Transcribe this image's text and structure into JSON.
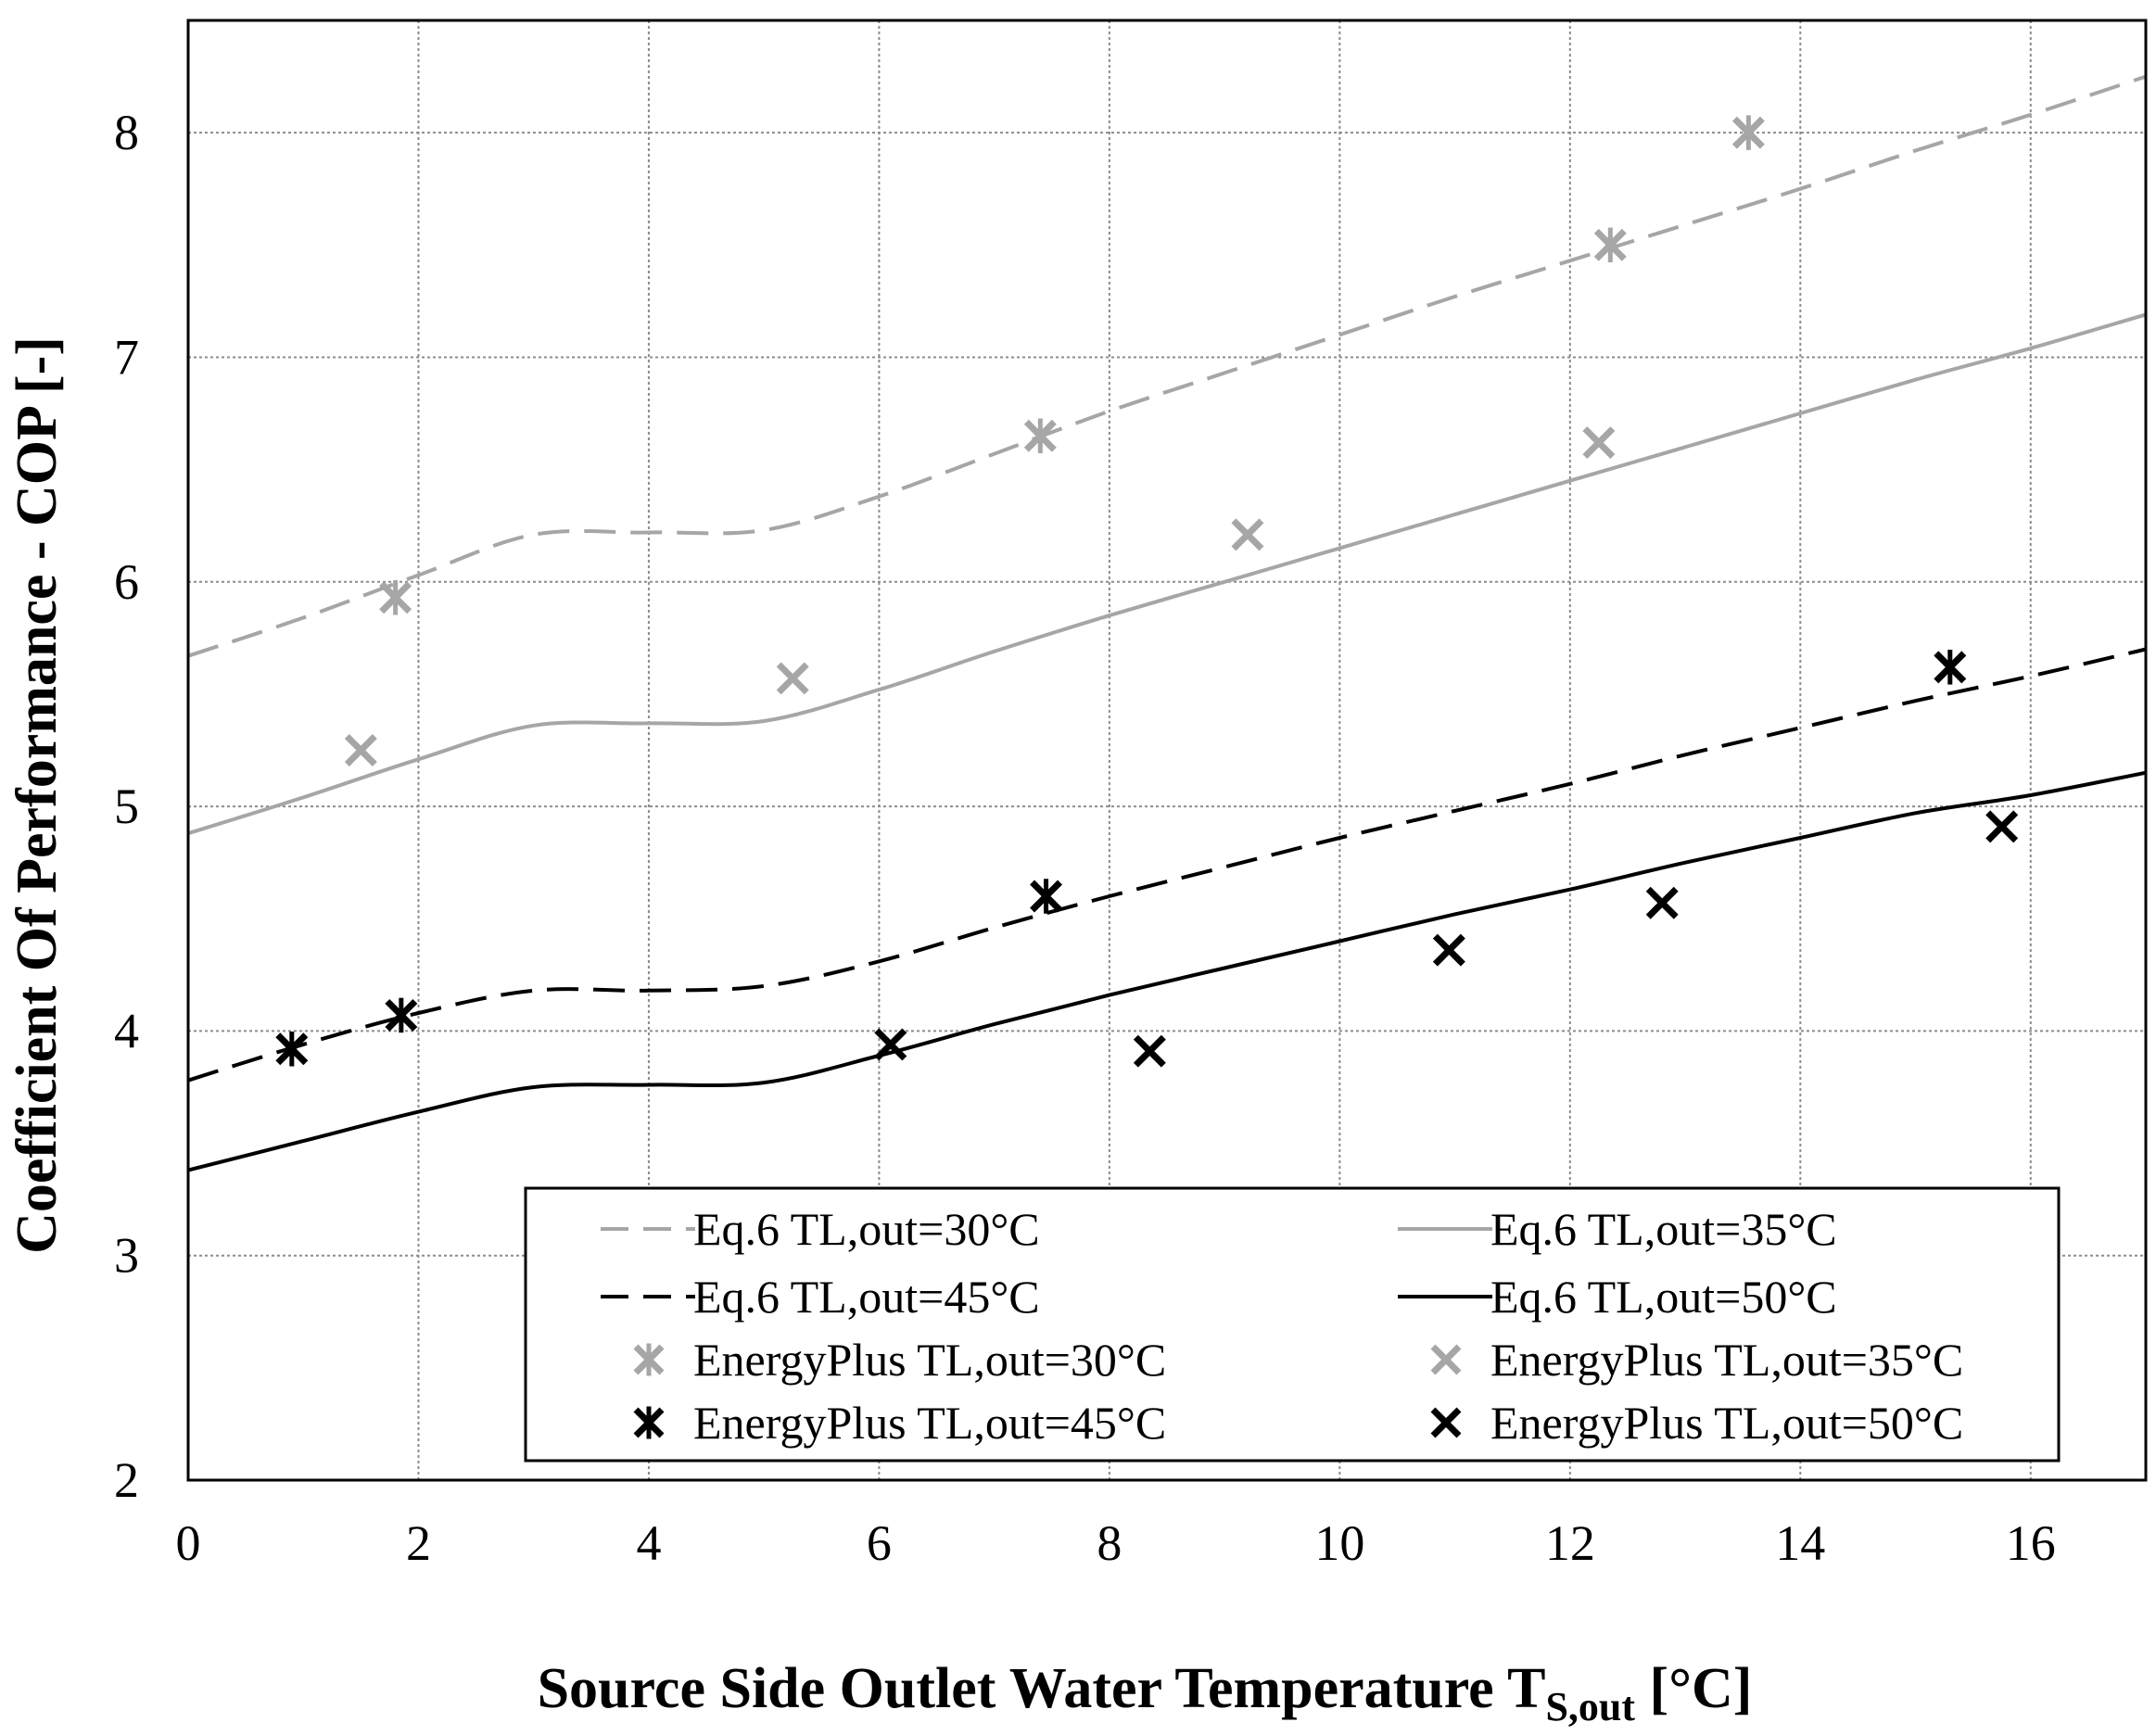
{
  "chart_data": {
    "type": "line",
    "title": "",
    "xlabel_main": "Source Side Outlet Water Temperature T",
    "xlabel_sub": "S,out",
    "xlabel_unit": " [°C]",
    "ylabel": "Coefficient Of Performance - COP [-]",
    "xlim": [
      0,
      17
    ],
    "ylim": [
      2,
      8.5
    ],
    "xticks": [
      0,
      2,
      4,
      6,
      8,
      10,
      12,
      14,
      16
    ],
    "yticks": [
      2,
      3,
      4,
      5,
      6,
      7,
      8
    ],
    "grid": true,
    "legend_position": "bottom-right",
    "series": [
      {
        "name": "Eq.6 TL,out=30°C",
        "kind": "line",
        "dash": "dash",
        "color": "#a6a6a6",
        "x": [
          0,
          1,
          2,
          3,
          4,
          5,
          6,
          7,
          8,
          9,
          10,
          11,
          12,
          13,
          14,
          15,
          16,
          17
        ],
        "values": [
          5.67,
          5.84,
          6.03,
          6.21,
          6.22,
          6.23,
          6.38,
          6.57,
          6.76,
          6.93,
          7.1,
          7.27,
          7.43,
          7.59,
          7.75,
          7.92,
          8.08,
          8.25
        ]
      },
      {
        "name": "Eq.6 TL,out=35°C",
        "kind": "line",
        "dash": "solid",
        "color": "#a6a6a6",
        "x": [
          0,
          1,
          2,
          3,
          4,
          5,
          6,
          7,
          8,
          9,
          10,
          11,
          12,
          13,
          14,
          15,
          16,
          17
        ],
        "values": [
          4.88,
          5.04,
          5.21,
          5.36,
          5.37,
          5.38,
          5.52,
          5.69,
          5.85,
          6.0,
          6.15,
          6.3,
          6.45,
          6.6,
          6.75,
          6.9,
          7.04,
          7.19
        ]
      },
      {
        "name": "Eq.6 TL,out=45°C",
        "kind": "line",
        "dash": "dash",
        "color": "#000000",
        "x": [
          0,
          1,
          2,
          3,
          4,
          5,
          6,
          7,
          8,
          9,
          10,
          11,
          12,
          13,
          14,
          15,
          16,
          17
        ],
        "values": [
          3.78,
          3.94,
          4.08,
          4.18,
          4.18,
          4.2,
          4.31,
          4.46,
          4.6,
          4.73,
          4.86,
          4.98,
          5.1,
          5.23,
          5.35,
          5.47,
          5.58,
          5.7
        ]
      },
      {
        "name": "Eq.6 TL,out=50°C",
        "kind": "line",
        "dash": "solid",
        "color": "#000000",
        "x": [
          0,
          1,
          2,
          3,
          4,
          5,
          6,
          7,
          8,
          9,
          10,
          11,
          12,
          13,
          14,
          15,
          16,
          17
        ],
        "values": [
          3.38,
          3.51,
          3.64,
          3.75,
          3.76,
          3.77,
          3.89,
          4.03,
          4.16,
          4.28,
          4.4,
          4.52,
          4.63,
          4.75,
          4.86,
          4.97,
          5.05,
          5.15
        ]
      },
      {
        "name": "EnergyPlus TL,out=30°C",
        "kind": "marker",
        "marker": "asterisk",
        "color": "#a6a6a6",
        "x": [
          1.8,
          7.4,
          12.35,
          13.55
        ],
        "values": [
          5.93,
          6.65,
          7.5,
          8.0
        ]
      },
      {
        "name": "EnergyPlus TL,out=35°C",
        "kind": "marker",
        "marker": "x",
        "color": "#a6a6a6",
        "x": [
          1.5,
          5.25,
          9.2,
          12.25
        ],
        "values": [
          5.25,
          5.57,
          6.21,
          6.62
        ]
      },
      {
        "name": "EnergyPlus TL,out=45°C",
        "kind": "marker",
        "marker": "asterisk",
        "color": "#000000",
        "x": [
          0.9,
          1.85,
          7.45,
          15.3
        ],
        "values": [
          3.92,
          4.07,
          4.6,
          5.62
        ]
      },
      {
        "name": "EnergyPlus TL,out=50°C",
        "kind": "marker",
        "marker": "x",
        "color": "#000000",
        "x": [
          6.1,
          8.35,
          10.95,
          12.8,
          15.75
        ],
        "values": [
          3.94,
          3.91,
          4.36,
          4.57,
          4.91
        ]
      }
    ]
  }
}
